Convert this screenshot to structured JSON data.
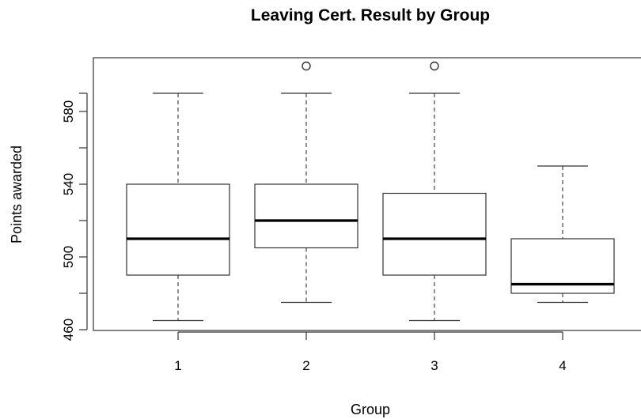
{
  "chart_data": {
    "type": "boxplot",
    "title": "Leaving Cert. Result by Group",
    "xlabel": "Group",
    "ylabel": "Points awarded",
    "ylim": [
      460,
      600
    ],
    "yticks": [
      460,
      500,
      540,
      580
    ],
    "ytick_minor": [
      480,
      520,
      560,
      590
    ],
    "categories": [
      "1",
      "2",
      "3",
      "4"
    ],
    "boxes": [
      {
        "group": "1",
        "whisker_low": 465,
        "q1": 490,
        "median": 510,
        "q3": 540,
        "whisker_high": 590,
        "outliers": []
      },
      {
        "group": "2",
        "whisker_low": 475,
        "q1": 505,
        "median": 520,
        "q3": 540,
        "whisker_high": 590,
        "outliers": [
          605
        ]
      },
      {
        "group": "3",
        "whisker_low": 465,
        "q1": 490,
        "median": 510,
        "q3": 535,
        "whisker_high": 590,
        "outliers": [
          605
        ]
      },
      {
        "group": "4",
        "whisker_low": 475,
        "q1": 480,
        "median": 485,
        "q3": 510,
        "whisker_high": 550,
        "outliers": []
      }
    ],
    "grid": false,
    "legend": "none"
  }
}
